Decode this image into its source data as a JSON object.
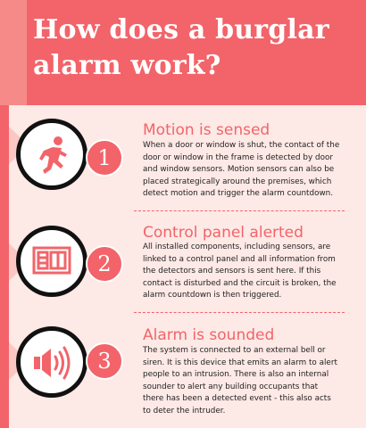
{
  "title": "How does a burglar alarm work?",
  "colors": {
    "accent": "#f2646a",
    "background": "#fde9e5",
    "icon_stroke": "#111111"
  },
  "steps": [
    {
      "number": "1",
      "icon": "running-person-icon",
      "heading": "Motion is sensed",
      "body": "When a door or window is shut, the contact of the door or window in the frame is detected by door and window sensors. Motion sensors can also be placed strategically around the premises, which detect motion and trigger the alarm countdown."
    },
    {
      "number": "2",
      "icon": "control-panel-icon",
      "heading": "Control panel alerted",
      "body": "All installed components, including sensors, are linked to a control panel and all information from the detectors and sensors is sent here. If this contact is disturbed and the circuit is broken, the alarm countdown is then triggered."
    },
    {
      "number": "3",
      "icon": "speaker-sound-icon",
      "heading": "Alarm is sounded",
      "body": "The system is connected to an external bell or siren. It is this device that emits an alarm to alert people to an intrusion. There is also an internal sounder to alert any building occupants that there has been a detected event - this also acts to deter the intruder."
    }
  ]
}
